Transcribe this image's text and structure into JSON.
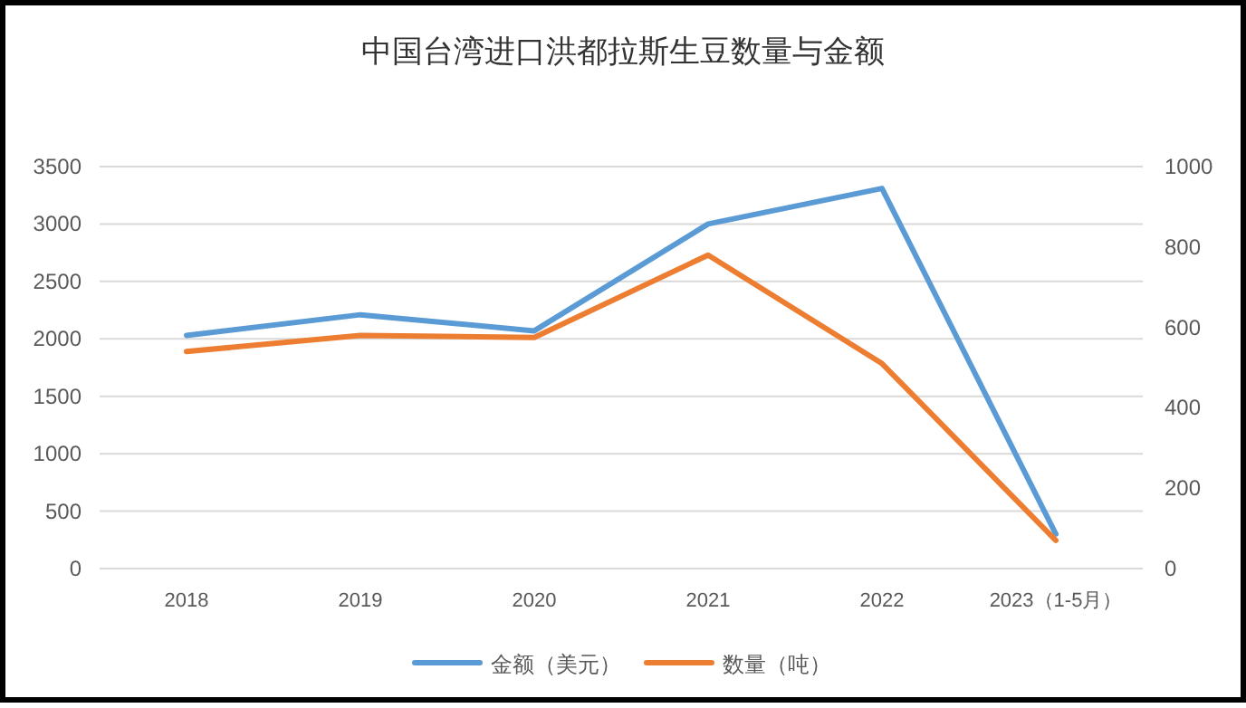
{
  "chart_data": {
    "type": "line",
    "title": "中国台湾进口洪都拉斯生豆数量与金额",
    "categories": [
      "2018",
      "2019",
      "2020",
      "2021",
      "2022",
      "2023（1-5月）"
    ],
    "series": [
      {
        "name": "金额（美元）",
        "color": "#5b9bd5",
        "values": [
          2030,
          2210,
          2070,
          3000,
          3310,
          300
        ]
      },
      {
        "name": "数量（吨）",
        "color": "#ed7d31",
        "axis": "y2",
        "values": [
          540,
          580,
          575,
          780,
          510,
          70
        ]
      }
    ],
    "ylim": [
      0,
      3500
    ],
    "yticks": [
      0,
      500,
      1000,
      1500,
      2000,
      2500,
      3000,
      3500
    ],
    "y2lim": [
      0,
      1000
    ],
    "y2ticks": [
      0,
      200,
      400,
      600,
      800,
      1000
    ],
    "grid": "y",
    "legend": "bottom",
    "marker": "none",
    "line_style": "solid"
  }
}
